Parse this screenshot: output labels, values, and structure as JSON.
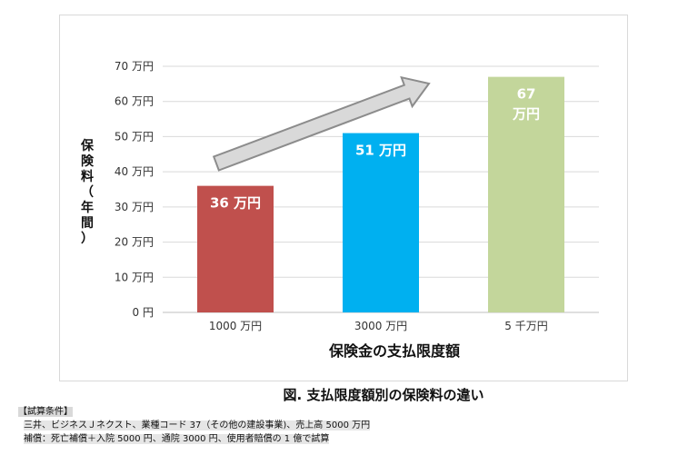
{
  "chart_data": {
    "type": "bar",
    "categories": [
      "1000 万円",
      "3000 万円",
      "5 千万円"
    ],
    "values": [
      36,
      51,
      67
    ],
    "colors": [
      "#c0504d",
      "#00b0f0",
      "#c3d69b"
    ],
    "data_labels": [
      "36 万円",
      "51 万円",
      [
        "67",
        "万円"
      ]
    ],
    "y_ticks": [
      "0 円",
      "10 万円",
      "20 万円",
      "30 万円",
      "40 万円",
      "50 万円",
      "60 万円",
      "70 万円"
    ],
    "ylim": [
      0,
      70
    ],
    "grid": true,
    "xlabel": "保険金の支払限度額",
    "ylabel": "保険料（年間）",
    "trend_arrow": true
  },
  "caption": "図. 支払限度額別の保険料の違い",
  "notes": {
    "heading": "【試算条件】",
    "line1": "三井、ビジネスＪネクスト、業種コード 37（その他の建設事業)、売上高 5000 万円",
    "line2": "補償：死亡補償＋入院 5000 円、通院 3000 円、使用者賠償の 1 億で試算"
  }
}
